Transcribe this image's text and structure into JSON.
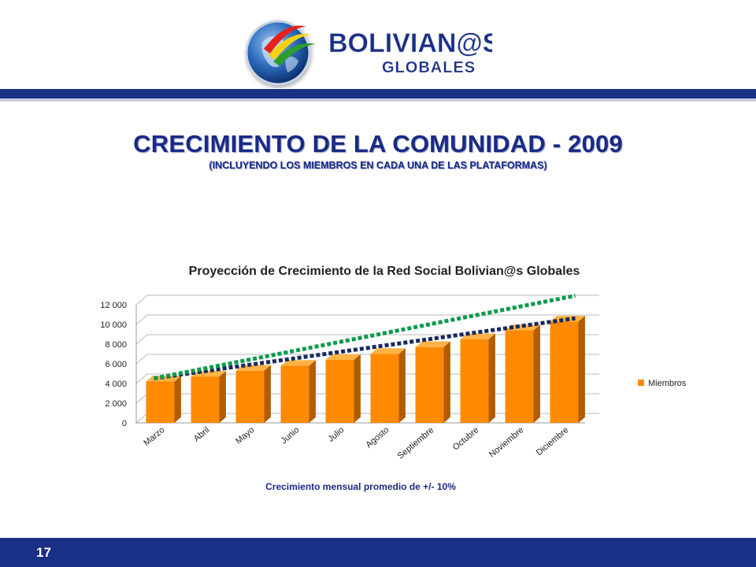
{
  "logo": {
    "text_main": "BOLIVIAN@S",
    "text_sub": "GLOBALES"
  },
  "title": "CRECIMIENTO  DE LA COMUNIDAD  - 2009",
  "subtitle": "(INCLUYENDO LOS MIEMBROS EN CADA UNA DE LAS PLATAFORMAS)",
  "page_number": "17",
  "colors": {
    "navy": "#1a2f86",
    "bar": "#ff8a00",
    "trend_green": "#0a9a4a",
    "trend_navy": "#17295f"
  },
  "chart_data": {
    "type": "bar",
    "title": "Proyección de Crecimiento de la Red Social Bolivian@s Globales",
    "categories": [
      "Marzo",
      "Abril",
      "Mayo",
      "Junio",
      "Julio",
      "Agosto",
      "Septiembre",
      "Octubre",
      "Noviembre",
      "Diciembre"
    ],
    "series": [
      {
        "name": "Miembros",
        "values": [
          4200,
          4700,
          5300,
          5800,
          6400,
          7000,
          7700,
          8500,
          9400,
          10300
        ]
      }
    ],
    "trendlines": [
      {
        "values": [
          4200,
          10300
        ]
      },
      {
        "values": [
          4200,
          12600
        ]
      }
    ],
    "yticks": [
      "0",
      "2 000",
      "4 000",
      "6 000",
      "8 000",
      "10 000",
      "12 000"
    ],
    "ylim": [
      0,
      12000
    ],
    "legend": "right",
    "grid": true,
    "annotation": "Crecimiento mensual promedio de +/- 10%"
  }
}
